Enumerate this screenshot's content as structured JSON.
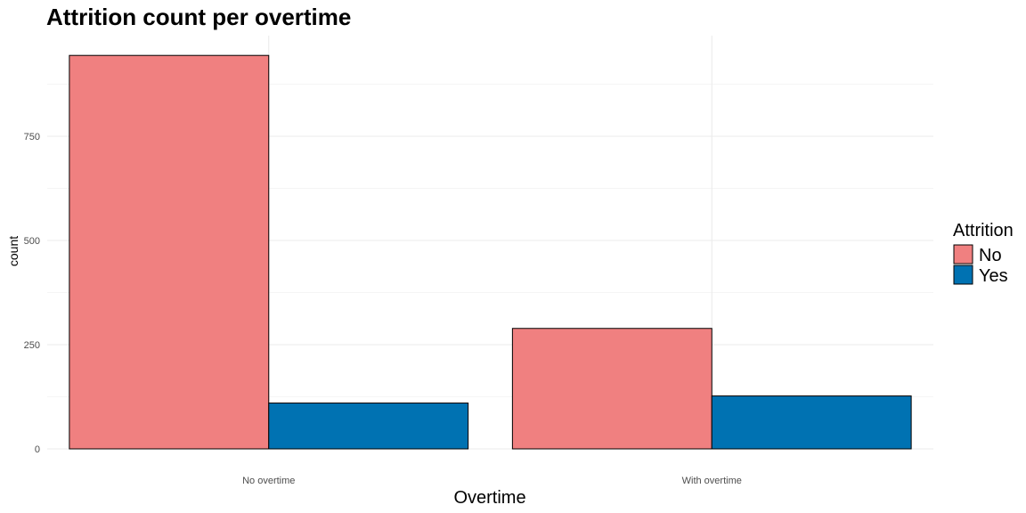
{
  "chart_data": {
    "type": "bar",
    "title": "Attrition count per overtime",
    "xlabel": "Overtime",
    "ylabel": "count",
    "categories": [
      "No overtime",
      "With overtime"
    ],
    "series": [
      {
        "name": "No",
        "values": [
          944,
          289
        ],
        "color": "#F08080"
      },
      {
        "name": "Yes",
        "values": [
          110,
          127
        ],
        "color": "#0072B2"
      }
    ],
    "yticks": [
      0,
      250,
      500,
      750
    ],
    "ylim": [
      0,
      1000
    ],
    "grid": true,
    "legend": {
      "title": "Attrition",
      "position": "right"
    },
    "bar_border_color": "#000000",
    "grid_color": "#ebebeb"
  }
}
